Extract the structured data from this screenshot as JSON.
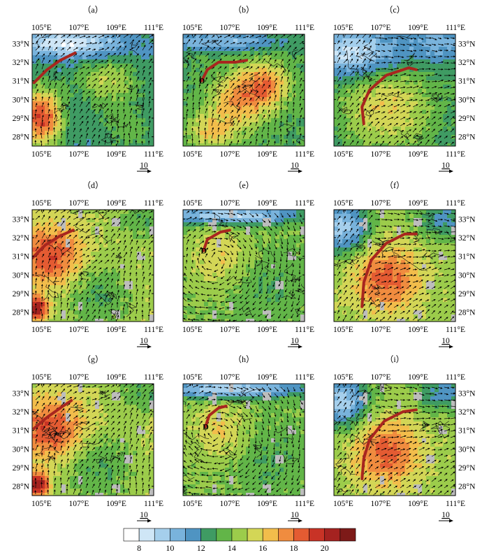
{
  "chart_data": {
    "type": "heatmap",
    "panels": [
      {
        "id": "a",
        "label": "（a）",
        "marker": null,
        "trough": [
          [
            104.6,
            30.9
          ],
          [
            105.3,
            31.6
          ],
          [
            106.0,
            32.1
          ],
          [
            106.8,
            32.5
          ]
        ]
      },
      {
        "id": "b",
        "label": "（b）",
        "marker": "D",
        "trough": [
          [
            105.5,
            31.0
          ],
          [
            105.8,
            31.6
          ],
          [
            106.4,
            32.0
          ],
          [
            107.3,
            32.0
          ],
          [
            107.9,
            32.1
          ]
        ]
      },
      {
        "id": "c",
        "label": "（c）",
        "marker": null,
        "trough": [
          [
            106.1,
            28.7
          ],
          [
            106.0,
            29.6
          ],
          [
            106.4,
            30.5
          ],
          [
            107.3,
            31.3
          ],
          [
            108.5,
            31.7
          ],
          [
            108.9,
            31.6
          ]
        ]
      },
      {
        "id": "d",
        "label": "（d）",
        "marker": null,
        "trough": [
          [
            104.5,
            30.9
          ],
          [
            105.2,
            31.6
          ],
          [
            106.0,
            32.1
          ],
          [
            106.7,
            32.4
          ]
        ]
      },
      {
        "id": "e",
        "label": "（e）",
        "marker": "D",
        "trough": [
          [
            105.6,
            31.3
          ],
          [
            105.8,
            31.9
          ],
          [
            106.5,
            32.3
          ],
          [
            107.0,
            32.4
          ]
        ]
      },
      {
        "id": "f",
        "label": "（f）",
        "marker": null,
        "trough": [
          [
            106.0,
            28.3
          ],
          [
            106.1,
            29.6
          ],
          [
            106.5,
            30.8
          ],
          [
            107.3,
            31.7
          ],
          [
            108.3,
            32.2
          ],
          [
            108.9,
            32.2
          ]
        ]
      },
      {
        "id": "g",
        "label": "（g）",
        "marker": null,
        "trough": [
          [
            104.6,
            31.1
          ],
          [
            105.3,
            31.7
          ],
          [
            106.0,
            32.2
          ],
          [
            106.6,
            32.6
          ]
        ]
      },
      {
        "id": "h",
        "label": "（h）",
        "marker": "D",
        "trough": [
          [
            105.7,
            31.2
          ],
          [
            105.9,
            31.8
          ],
          [
            106.4,
            32.2
          ],
          [
            106.8,
            32.3
          ]
        ]
      },
      {
        "id": "i",
        "label": "（i）",
        "marker": null,
        "trough": [
          [
            106.0,
            28.4
          ],
          [
            106.1,
            29.5
          ],
          [
            106.4,
            30.5
          ],
          [
            107.2,
            31.5
          ],
          [
            108.2,
            32.0
          ],
          [
            108.9,
            32.1
          ]
        ]
      }
    ],
    "x_ticks": [
      "105°E",
      "107°E",
      "109°E",
      "111°E"
    ],
    "x_tick_values": [
      105,
      107,
      109,
      111
    ],
    "y_ticks": [
      "33°N",
      "32°N",
      "31°N",
      "30°N",
      "29°N",
      "28°N"
    ],
    "y_tick_values": [
      33,
      32,
      31,
      30,
      29,
      28
    ],
    "xlim": [
      104.5,
      111
    ],
    "ylim": [
      27.5,
      33.5
    ],
    "vector_scale_label": "10",
    "colorbar": {
      "labels": [
        "8",
        "10",
        "12",
        "14",
        "16",
        "18",
        "20"
      ],
      "colors": [
        "#ffffff",
        "#cfe6f6",
        "#a5cfec",
        "#79b3dc",
        "#4f94c2",
        "#3f9b63",
        "#62b548",
        "#9ccc4b",
        "#d3d656",
        "#f2bd4b",
        "#f08c3f",
        "#e45b32",
        "#c83326",
        "#a52220",
        "#7d1a18"
      ]
    },
    "trough_color": "#a8261f",
    "land_gray": "#bdbdbd"
  }
}
